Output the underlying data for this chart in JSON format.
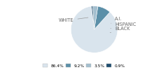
{
  "labels": [
    "WHITE",
    "A.I.",
    "HISPANIC",
    "BLACK"
  ],
  "values": [
    86.4,
    9.2,
    3.5,
    0.9
  ],
  "colors": [
    "#d9e4ed",
    "#5b8fa8",
    "#a4bfcf",
    "#1e4d6e"
  ],
  "legend_labels": [
    "86.4%",
    "9.2%",
    "3.5%",
    "0.9%"
  ],
  "startangle": 97,
  "bg_color": "#ffffff"
}
